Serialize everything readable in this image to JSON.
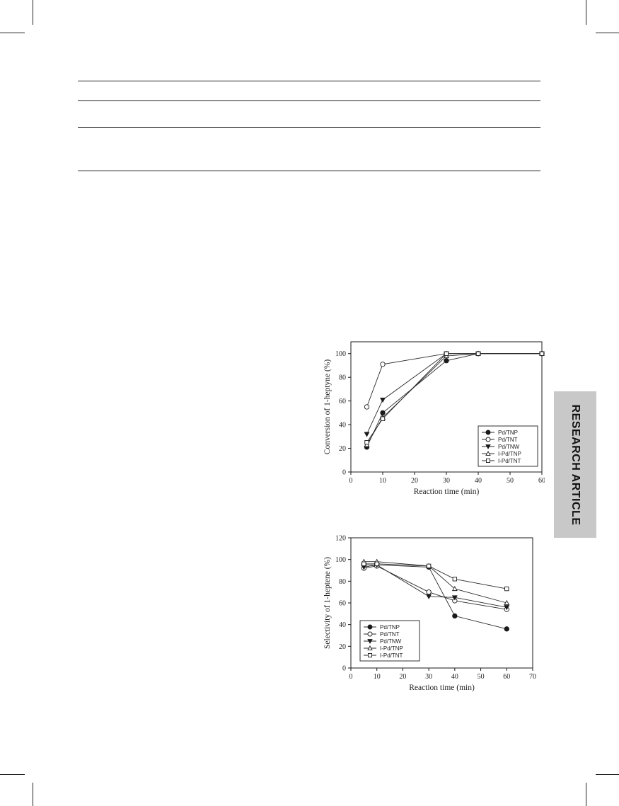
{
  "side_tab": {
    "label": "RESEARCH ARTICLE"
  },
  "chart_data": [
    {
      "type": "line",
      "xlabel": "Reaction time (min)",
      "ylabel": "Conversion of 1-heptyne (%)",
      "xlim": [
        0,
        60
      ],
      "ylim": [
        0,
        110
      ],
      "xticks": [
        0,
        10,
        20,
        30,
        40,
        50,
        60
      ],
      "yticks": [
        0,
        20,
        40,
        60,
        80,
        100
      ],
      "grid": false,
      "legend_position": "bottom-right",
      "series": [
        {
          "name": "Pd/TNP",
          "marker": "filled-circle",
          "points": [
            [
              5,
              21
            ],
            [
              10,
              50
            ],
            [
              30,
              94
            ],
            [
              40,
              100
            ],
            [
              60,
              100
            ]
          ]
        },
        {
          "name": "Pd/TNT",
          "marker": "open-circle",
          "points": [
            [
              5,
              55
            ],
            [
              10,
              91
            ],
            [
              30,
              100
            ],
            [
              40,
              100
            ],
            [
              60,
              100
            ]
          ]
        },
        {
          "name": "Pd/TNW",
          "marker": "filled-triangle-down",
          "points": [
            [
              5,
              32
            ],
            [
              10,
              61
            ],
            [
              30,
              100
            ],
            [
              40,
              100
            ],
            [
              60,
              100
            ]
          ]
        },
        {
          "name": "I-Pd/TNP",
          "marker": "open-triangle-up",
          "points": [
            [
              5,
              23
            ],
            [
              10,
              46
            ],
            [
              30,
              98
            ],
            [
              40,
              100
            ],
            [
              60,
              100
            ]
          ]
        },
        {
          "name": "I-Pd/TNT",
          "marker": "open-square",
          "points": [
            [
              5,
              25
            ],
            [
              10,
              45
            ],
            [
              30,
              100
            ],
            [
              40,
              100
            ],
            [
              60,
              100
            ]
          ]
        }
      ]
    },
    {
      "type": "line",
      "xlabel": "Reaction time (min)",
      "ylabel": "Selectivity of 1-heptene (%)",
      "xlim": [
        0,
        70
      ],
      "ylim": [
        0,
        120
      ],
      "xticks": [
        0,
        10,
        20,
        30,
        40,
        50,
        60,
        70
      ],
      "yticks": [
        0,
        20,
        40,
        60,
        80,
        100,
        120
      ],
      "grid": false,
      "legend_position": "bottom-left",
      "series": [
        {
          "name": "Pd/TNP",
          "marker": "filled-circle",
          "points": [
            [
              5,
              95
            ],
            [
              10,
              95
            ],
            [
              30,
              93
            ],
            [
              40,
              48
            ],
            [
              60,
              36
            ]
          ]
        },
        {
          "name": "Pd/TNT",
          "marker": "open-circle",
          "points": [
            [
              5,
              92
            ],
            [
              10,
              94
            ],
            [
              30,
              70
            ],
            [
              40,
              62
            ],
            [
              60,
              54
            ]
          ]
        },
        {
          "name": "Pd/TNW",
          "marker": "filled-triangle-down",
          "points": [
            [
              5,
              93
            ],
            [
              10,
              95
            ],
            [
              30,
              66
            ],
            [
              40,
              65
            ],
            [
              60,
              56
            ]
          ]
        },
        {
          "name": "I-Pd/TNP",
          "marker": "open-triangle-up",
          "points": [
            [
              5,
              98
            ],
            [
              10,
              98
            ],
            [
              30,
              94
            ],
            [
              40,
              73
            ],
            [
              60,
              60
            ]
          ]
        },
        {
          "name": "I-Pd/TNT",
          "marker": "open-square",
          "points": [
            [
              5,
              96
            ],
            [
              10,
              96
            ],
            [
              30,
              94
            ],
            [
              40,
              82
            ],
            [
              60,
              73
            ]
          ]
        }
      ]
    }
  ]
}
